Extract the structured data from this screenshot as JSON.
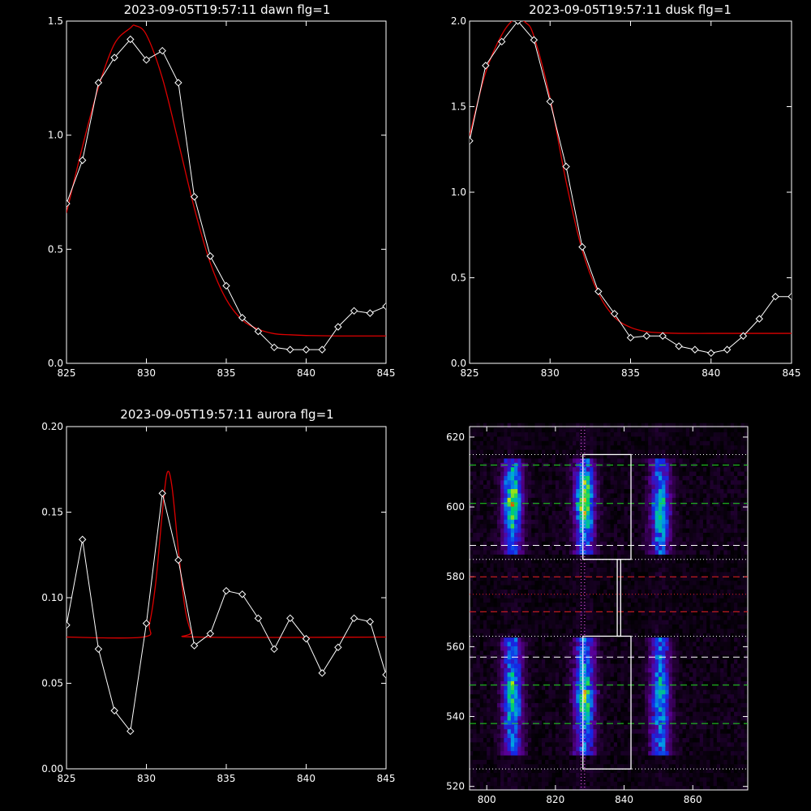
{
  "colors": {
    "background": "#000000",
    "axes": "#ffffff",
    "data_line": "#ffffff",
    "fit_line": "#dd0000",
    "green_guides": "#22dd22",
    "red_guides": "#ee2222"
  },
  "chart_data": [
    {
      "type": "line",
      "title": "2023-09-05T19:57:11 dawn flg=1",
      "xlim": [
        825,
        845
      ],
      "ylim": [
        0,
        1.5
      ],
      "xticks": [
        "825",
        "830",
        "835",
        "840",
        "845"
      ],
      "yticks": [
        "0.0",
        "0.5",
        "1.0",
        "1.5"
      ],
      "grid": false,
      "series": [
        {
          "style": "white line with diamond markers",
          "x": [
            825,
            826,
            827,
            828,
            829,
            830,
            831,
            832,
            833,
            834,
            835,
            836,
            837,
            838,
            839,
            840,
            841,
            842,
            843,
            844,
            845
          ],
          "y": [
            0.7,
            0.89,
            1.23,
            1.34,
            1.42,
            1.33,
            1.37,
            1.23,
            0.73,
            0.47,
            0.34,
            0.2,
            0.14,
            0.07,
            0.06,
            0.06,
            0.06,
            0.16,
            0.23,
            0.22,
            0.25
          ]
        },
        {
          "style": "red fit curve",
          "x": [
            825,
            826,
            827,
            828,
            829,
            829.3,
            830,
            831,
            832,
            833,
            834,
            835,
            836,
            837,
            838,
            839,
            840,
            842,
            845
          ],
          "y": [
            0.66,
            0.95,
            1.21,
            1.4,
            1.47,
            1.48,
            1.44,
            1.25,
            0.97,
            0.68,
            0.44,
            0.28,
            0.19,
            0.15,
            0.13,
            0.125,
            0.122,
            0.12,
            0.12
          ]
        }
      ]
    },
    {
      "type": "line",
      "title": "2023-09-05T19:57:11 dusk flg=1",
      "xlim": [
        825,
        845
      ],
      "ylim": [
        0,
        2.0
      ],
      "xticks": [
        "825",
        "830",
        "835",
        "840",
        "845"
      ],
      "yticks": [
        "0.0",
        "0.5",
        "1.0",
        "1.5",
        "2.0"
      ],
      "grid": false,
      "series": [
        {
          "style": "white line with diamond markers",
          "x": [
            825,
            826,
            827,
            828,
            829,
            830,
            831,
            832,
            833,
            834,
            835,
            836,
            837,
            838,
            839,
            840,
            841,
            842,
            843,
            844,
            845
          ],
          "y": [
            1.3,
            1.74,
            1.88,
            2.0,
            1.89,
            1.53,
            1.15,
            0.68,
            0.42,
            0.29,
            0.15,
            0.16,
            0.16,
            0.1,
            0.08,
            0.06,
            0.08,
            0.16,
            0.26,
            0.39,
            0.39
          ]
        },
        {
          "style": "red fit curve",
          "x": [
            825,
            826,
            827,
            827.8,
            828.5,
            829,
            830,
            831,
            832,
            833,
            834,
            835,
            836,
            837,
            838,
            840,
            842,
            845
          ],
          "y": [
            1.33,
            1.7,
            1.92,
            2.01,
            1.99,
            1.91,
            1.55,
            1.06,
            0.66,
            0.41,
            0.27,
            0.21,
            0.185,
            0.178,
            0.175,
            0.175,
            0.175,
            0.175
          ]
        }
      ]
    },
    {
      "type": "line",
      "title": "2023-09-05T19:57:11 aurora flg=1",
      "xlim": [
        825,
        845
      ],
      "ylim": [
        0,
        0.2
      ],
      "xticks": [
        "825",
        "830",
        "835",
        "840",
        "845"
      ],
      "yticks": [
        "0.00",
        "0.05",
        "0.10",
        "0.15",
        "0.20"
      ],
      "grid": false,
      "series": [
        {
          "style": "white line with diamond markers",
          "x": [
            825,
            826,
            827,
            828,
            829,
            830,
            831,
            832,
            833,
            834,
            835,
            836,
            837,
            838,
            839,
            840,
            841,
            842,
            843,
            844,
            845
          ],
          "y": [
            0.084,
            0.134,
            0.07,
            0.034,
            0.022,
            0.085,
            0.161,
            0.122,
            0.072,
            0.079,
            0.104,
            0.102,
            0.088,
            0.07,
            0.088,
            0.076,
            0.056,
            0.071,
            0.088,
            0.086,
            0.055
          ]
        },
        {
          "style": "red fit curve",
          "x": [
            825,
            829.8,
            830.2,
            830.6,
            831.0,
            831.3,
            831.6,
            832.0,
            832.4,
            832.8,
            833.2,
            845
          ],
          "y": [
            0.077,
            0.077,
            0.085,
            0.11,
            0.15,
            0.173,
            0.165,
            0.128,
            0.095,
            0.08,
            0.077,
            0.077
          ]
        }
      ]
    },
    {
      "type": "heatmap",
      "xlim": [
        795,
        876
      ],
      "ylim": [
        519,
        623
      ],
      "xticks": [
        "800",
        "820",
        "840",
        "860"
      ],
      "yticks": [
        "520",
        "540",
        "560",
        "580",
        "600",
        "620"
      ],
      "colormap": "rainbow (black-purple-blue-green-yellow-red)",
      "emission_columns_x": [
        807,
        828,
        850
      ],
      "hot_spots": [
        {
          "x": 807,
          "y": 601,
          "level": 0.85
        },
        {
          "x": 828,
          "y": 601,
          "level": 0.95
        },
        {
          "x": 828,
          "y": 545,
          "level": 0.75
        },
        {
          "x": 807,
          "y": 545,
          "level": 0.55
        },
        {
          "x": 850,
          "y": 598,
          "level": 0.45
        },
        {
          "x": 850,
          "y": 545,
          "level": 0.4
        }
      ],
      "vertical_dotted_lines_x": [
        827.5,
        828.5
      ],
      "white_dashed_y": [
        589,
        557
      ],
      "white_dotted_y": [
        615,
        585,
        563,
        525
      ],
      "green_dashed_y": [
        612,
        601,
        549,
        538
      ],
      "red_dashed_y": [
        580,
        570
      ],
      "red_dotted_y": [
        575
      ],
      "boxes": [
        {
          "x0": 828,
          "x1": 842,
          "y0": 585,
          "y1": 615
        },
        {
          "x0": 838,
          "x1": 839,
          "y0": 563,
          "y1": 585
        },
        {
          "x0": 828,
          "x1": 842,
          "y0": 525,
          "y1": 563
        }
      ]
    }
  ]
}
